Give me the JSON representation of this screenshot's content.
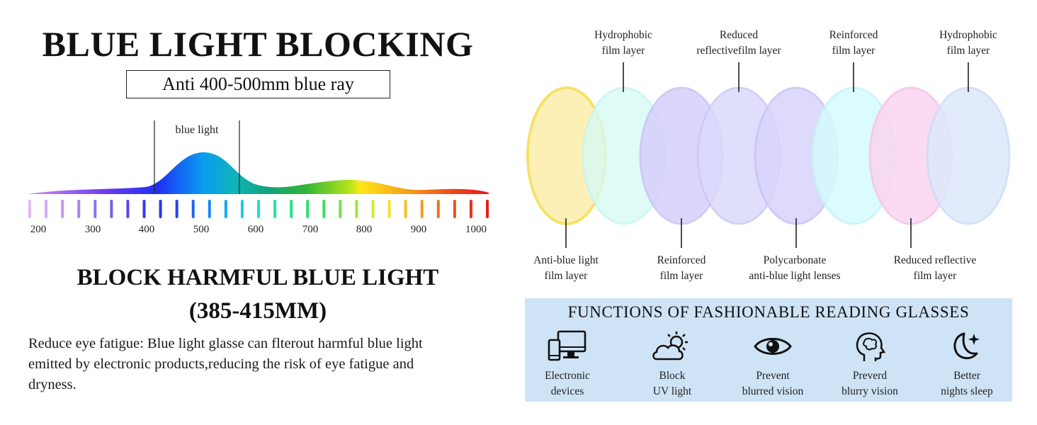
{
  "title": "BLUE LIGHT BLOCKING",
  "subtitle": "Anti 400-500mm blue ray",
  "spectrum": {
    "band_label": "blue light",
    "scale": [
      "200",
      "300",
      "400",
      "500",
      "600",
      "700",
      "800",
      "900",
      "1000"
    ]
  },
  "block": {
    "line1": "BLOCK HARMFUL BLUE LIGHT",
    "line2": "(385-415MM)"
  },
  "description": "Reduce eye fatigue: Blue light glasse can flterout harmful blue light emitted by electronic products,reducing the risk of eye fatigue and dryness.",
  "layers_top": [
    {
      "line1": "Hydrophobic",
      "line2": "film layer"
    },
    {
      "line1": "Reduced",
      "line2": "reflectivefilm layer"
    },
    {
      "line1": "Reinforced",
      "line2": "film layer"
    },
    {
      "line1": "Hydrophobic",
      "line2": "film layer"
    }
  ],
  "layers_bottom": [
    {
      "line1": "Anti-blue light",
      "line2": "film layer"
    },
    {
      "line1": "Reinforced",
      "line2": "film layer"
    },
    {
      "line1": "Polycarbonate",
      "line2": "anti-blue light lenses"
    },
    {
      "line1": "Reduced reflective",
      "line2": "film layer"
    }
  ],
  "functions": {
    "title": "FUNCTIONS OF FASHIONABLE READING GLASSES",
    "items": [
      {
        "icon": "devices-icon",
        "line1": "Electronic",
        "line2": "devices"
      },
      {
        "icon": "cloud-sun-icon",
        "line1": "Block",
        "line2": "UV light"
      },
      {
        "icon": "eye-icon",
        "line1": "Prevent",
        "line2": "blurred vision"
      },
      {
        "icon": "brain-head-icon",
        "line1": "Preverd",
        "line2": "blurry vision"
      },
      {
        "icon": "moon-star-icon",
        "line1": "Better",
        "line2": "nights sleep"
      }
    ]
  },
  "colors": {
    "lens_colors": [
      "#fdf0b0",
      "#d8fbf6",
      "#d9d3fb",
      "#dcdcfa",
      "#d8d4fb",
      "#d8fbfc",
      "#fbd7f1",
      "#dfe9fc"
    ],
    "panel_bg": "#cfe3f6"
  }
}
